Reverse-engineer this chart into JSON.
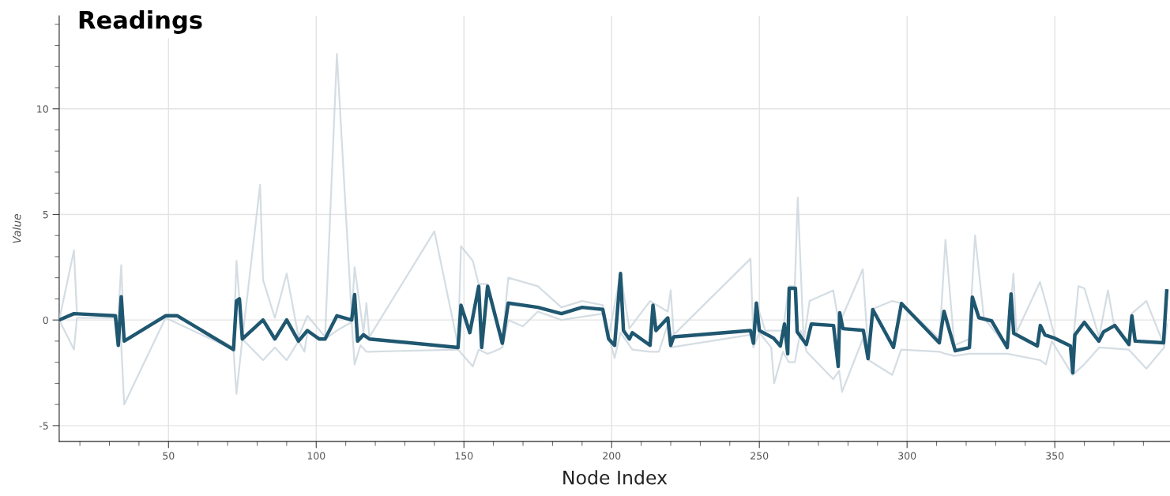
{
  "chart_data": {
    "type": "line",
    "title": "Readings",
    "xlabel": "Node Index",
    "ylabel": "Value",
    "xlim": [
      13,
      389
    ],
    "ylim": [
      -5.75,
      14.4
    ],
    "xticks": [
      50,
      100,
      150,
      200,
      250,
      300,
      350
    ],
    "yticks": [
      -5,
      0,
      5,
      10
    ],
    "grid": true,
    "marker": "none",
    "line_style": "solid",
    "series": [
      {
        "color": "#c9d5dc",
        "x": [
          13,
          18,
          19,
          33,
          34,
          35,
          49,
          53,
          72,
          73,
          75,
          81,
          82,
          86,
          90,
          94,
          97,
          103,
          107,
          112,
          113,
          116,
          117,
          118,
          140,
          148,
          149,
          153,
          155,
          158,
          163,
          165,
          175,
          183,
          190,
          197,
          199,
          203,
          206,
          213,
          219,
          220,
          221,
          247,
          248,
          249,
          252,
          258,
          260,
          262,
          263,
          265,
          267,
          275,
          277,
          285,
          287,
          288,
          295,
          298,
          311,
          313,
          316,
          321,
          323,
          326,
          334,
          336,
          337,
          345,
          347,
          350,
          356,
          358,
          360,
          365,
          368,
          370,
          375,
          376,
          381,
          387,
          388
        ],
        "values": [
          0,
          3.3,
          0.3,
          0.2,
          2.6,
          -1.0,
          0.2,
          0.2,
          -1.3,
          2.8,
          -0.9,
          6.4,
          1.9,
          0.1,
          2.2,
          -0.8,
          0.2,
          -0.8,
          12.6,
          0.2,
          2.5,
          -0.6,
          0.8,
          -0.8,
          4.2,
          -1.2,
          3.5,
          2.8,
          1.7,
          1.7,
          -1.0,
          2.0,
          1.6,
          0.6,
          0.9,
          0.7,
          -0.8,
          2.2,
          -0.4,
          0.9,
          0.4,
          1.4,
          -0.7,
          2.9,
          -1.0,
          0.8,
          -0.5,
          -0.5,
          1.6,
          1.6,
          5.8,
          -1.0,
          0.9,
          1.4,
          -0.2,
          2.4,
          -1.8,
          0.5,
          0.9,
          0.8,
          -0.9,
          3.8,
          -1.2,
          -0.9,
          4.0,
          0.1,
          -1.3,
          2.2,
          -0.6,
          1.8,
          0.8,
          -0.8,
          -1.3,
          1.6,
          1.5,
          -0.8,
          1.4,
          -0.2,
          -1.1,
          0.3,
          0.9,
          -1.2,
          1.4
        ]
      },
      {
        "color": "#c9d5dc",
        "x": [
          13,
          18,
          19,
          33,
          34,
          35,
          49,
          72,
          73,
          75,
          82,
          86,
          90,
          94,
          96,
          97,
          103,
          107,
          112,
          113,
          115,
          117,
          118,
          148,
          153,
          155,
          158,
          160,
          163,
          165,
          170,
          175,
          183,
          197,
          201,
          203,
          207,
          213,
          216,
          219,
          220,
          247,
          248,
          250,
          254,
          255,
          258,
          260,
          262,
          264,
          266,
          275,
          277,
          278,
          285,
          287,
          295,
          298,
          311,
          313,
          316,
          321,
          334,
          345,
          347,
          349,
          356,
          360,
          365,
          375,
          381,
          387,
          388
        ],
        "values": [
          0,
          -1.4,
          0.1,
          0.1,
          -1.2,
          -4.0,
          0.1,
          -1.4,
          -3.5,
          -0.9,
          -1.9,
          -1.3,
          -1.9,
          -1.0,
          -1.5,
          -0.6,
          -0.9,
          -0.5,
          -0.1,
          -2.1,
          -1.2,
          -1.5,
          -1.5,
          -1.4,
          -2.2,
          -1.4,
          -1.6,
          -1.5,
          -1.3,
          0.0,
          -0.3,
          0.4,
          0.0,
          0.3,
          -1.8,
          -0.6,
          -1.4,
          -1.5,
          -1.5,
          -0.2,
          -1.3,
          -0.7,
          -1.3,
          -0.6,
          -1.3,
          -3.0,
          -1.5,
          -2.0,
          -2.0,
          -0.5,
          -1.5,
          -2.8,
          -2.4,
          -3.4,
          -0.9,
          -1.9,
          -2.6,
          -1.4,
          -1.5,
          -1.6,
          -1.7,
          -1.6,
          -1.6,
          -1.9,
          -2.1,
          -1.0,
          -2.6,
          -2.1,
          -1.3,
          -1.4,
          -2.3,
          -1.3,
          -0.2
        ]
      },
      {
        "color": "#1f5770",
        "x": [
          13,
          18,
          32,
          33,
          34,
          35,
          49,
          53,
          72,
          73,
          74,
          75,
          82,
          86,
          90,
          94,
          97,
          101,
          103,
          107,
          112,
          113,
          114,
          116,
          118,
          148,
          149,
          152,
          155,
          156,
          158,
          163,
          165,
          175,
          183,
          190,
          197,
          199,
          201,
          203,
          204,
          206,
          207,
          213,
          214,
          215,
          219,
          220,
          221,
          247,
          248,
          249,
          250,
          254.8,
          257.1,
          258.5,
          259.6,
          260.1,
          262.2,
          262.8,
          265.9,
          267.6,
          275.1,
          276.7,
          277.2,
          278.3,
          285.2,
          286.8,
          288.4,
          295.4,
          298.1,
          310.9,
          312.5,
          316.3,
          321.1,
          322.1,
          324.3,
          328.6,
          333.9,
          335.2,
          336.1,
          344.1,
          345.1,
          346.7,
          349.9,
          355.3,
          356.1,
          356.8,
          360,
          364.9,
          366.5,
          370.3,
          375.1,
          376.1,
          377.2,
          386.8,
          387.9
        ],
        "values": [
          0.0,
          0.3,
          0.2,
          -1.2,
          1.1,
          -1.0,
          0.2,
          0.2,
          -1.4,
          0.9,
          1.0,
          -0.9,
          0,
          -0.9,
          0,
          -1.0,
          -0.5,
          -0.9,
          -0.9,
          0.2,
          0.0,
          1.2,
          -1.0,
          -0.7,
          -0.9,
          -1.3,
          0.7,
          -0.6,
          1.6,
          -1.3,
          1.6,
          -1.1,
          0.8,
          0.6,
          0.3,
          0.6,
          0.5,
          -0.9,
          -1.2,
          2.2,
          -0.5,
          -0.9,
          -0.6,
          -1.2,
          0.7,
          -0.5,
          0.1,
          -1.2,
          -0.8,
          -0.5,
          -1.1,
          0.8,
          -0.5,
          -0.86,
          -1.23,
          -0.19,
          -1.6,
          1.5,
          1.5,
          -0.56,
          -1.16,
          -0.19,
          -0.26,
          -2.2,
          0.34,
          -0.41,
          -0.49,
          -1.83,
          0.49,
          -1.3,
          0.78,
          -1.08,
          0.41,
          -1.46,
          -1.31,
          1.08,
          0.11,
          -0.04,
          -1.31,
          1.23,
          -0.63,
          -1.23,
          -0.26,
          -0.71,
          -0.86,
          -1.23,
          -2.5,
          -0.71,
          -0.11,
          -1.0,
          -0.56,
          -0.26,
          -1.16,
          0.19,
          -1.0,
          -1.08,
          1.38
        ]
      }
    ]
  }
}
